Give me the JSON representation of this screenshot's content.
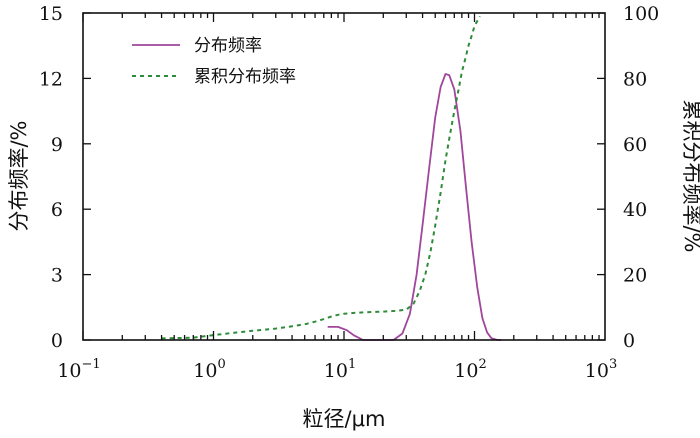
{
  "chart_data": {
    "type": "line",
    "x_scale": "log",
    "xlim": [
      0.1,
      1000
    ],
    "ylim_left": [
      0,
      15
    ],
    "ylim_right": [
      0,
      100
    ],
    "xlabel": "粒径/μm",
    "ylabel_left": "分布频率/%",
    "ylabel_right": "累积分布频率/%",
    "x_ticks": [
      {
        "value": 0.1,
        "base": "10",
        "exp": "−1"
      },
      {
        "value": 1,
        "base": "10",
        "exp": "0"
      },
      {
        "value": 10,
        "base": "10",
        "exp": "1"
      },
      {
        "value": 100,
        "base": "10",
        "exp": "2"
      },
      {
        "value": 1000,
        "base": "10",
        "exp": "3"
      }
    ],
    "y_ticks_left": [
      "0",
      "3",
      "6",
      "9",
      "12",
      "15"
    ],
    "y_ticks_right": [
      "0",
      "20",
      "40",
      "60",
      "80",
      "100"
    ],
    "legend_position": "top-left",
    "grid": false,
    "series": [
      {
        "name": "分布频率",
        "axis": "left",
        "style": "solid",
        "color": "#a0469c",
        "points": [
          [
            7.5,
            0.6
          ],
          [
            9,
            0.6
          ],
          [
            10.5,
            0.45
          ],
          [
            12,
            0.2
          ],
          [
            14,
            0.0
          ],
          [
            17,
            0.0
          ],
          [
            20,
            0.0
          ],
          [
            24,
            0.0
          ],
          [
            28,
            0.3
          ],
          [
            32,
            1.2
          ],
          [
            36,
            3.0
          ],
          [
            40,
            5.3
          ],
          [
            45,
            7.9
          ],
          [
            50,
            10.2
          ],
          [
            55,
            11.6
          ],
          [
            60,
            12.2
          ],
          [
            64,
            12.15
          ],
          [
            70,
            11.5
          ],
          [
            78,
            9.6
          ],
          [
            86,
            7.0
          ],
          [
            95,
            4.5
          ],
          [
            105,
            2.4
          ],
          [
            115,
            1.0
          ],
          [
            125,
            0.35
          ],
          [
            135,
            0.08
          ],
          [
            150,
            0.0
          ],
          [
            160,
            0.0
          ]
        ]
      },
      {
        "name": "累积分布频率",
        "axis": "right",
        "style": "dashed",
        "color": "#2e8b3a",
        "points": [
          [
            0.4,
            0.5
          ],
          [
            0.7,
            0.7
          ],
          [
            1,
            1.5
          ],
          [
            1.5,
            2.3
          ],
          [
            2,
            2.8
          ],
          [
            3,
            3.5
          ],
          [
            4,
            4.2
          ],
          [
            5,
            4.8
          ],
          [
            6,
            5.6
          ],
          [
            7,
            6.4
          ],
          [
            8,
            7.2
          ],
          [
            9,
            7.7
          ],
          [
            10,
            8.0
          ],
          [
            12,
            8.3
          ],
          [
            15,
            8.5
          ],
          [
            20,
            8.7
          ],
          [
            25,
            8.9
          ],
          [
            30,
            9.3
          ],
          [
            34,
            11.0
          ],
          [
            38,
            15.0
          ],
          [
            42,
            20.0
          ],
          [
            46,
            27.0
          ],
          [
            50,
            35.0
          ],
          [
            55,
            45.0
          ],
          [
            60,
            55.0
          ],
          [
            65,
            63.0
          ],
          [
            70,
            70.0
          ],
          [
            75,
            76.0
          ],
          [
            80,
            82.0
          ],
          [
            85,
            86.0
          ],
          [
            90,
            90.0
          ],
          [
            95,
            93.0
          ],
          [
            100,
            96.0
          ],
          [
            110,
            99.0
          ]
        ]
      }
    ]
  }
}
